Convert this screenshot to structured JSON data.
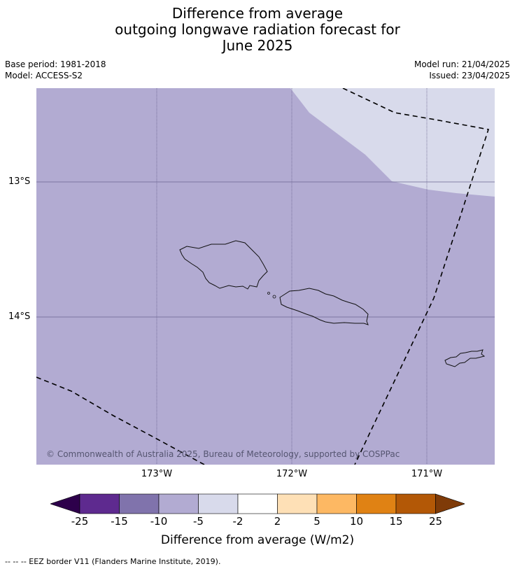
{
  "title": {
    "line1": "Difference from average",
    "line2": "outgoing longwave radiation forecast for",
    "line3": "June 2025"
  },
  "meta": {
    "base_period": "Base period: 1981-2018",
    "model": "Model: ACCESS-S2",
    "model_run": "Model run: 21/04/2025",
    "issued": "Issued: 23/04/2025"
  },
  "map": {
    "copyright": "© Commonwealth of Australia 2025, Bureau of Meteorology, supported by COSPPac",
    "lat_labels": [
      "13°S",
      "14°S"
    ],
    "lon_labels": [
      "173°W",
      "172°W",
      "171°W"
    ],
    "dominant_category": "-10 to -5",
    "secondary_category": "-5 to -2",
    "features": [
      "Samoa islands outline",
      "American Samoa outline",
      "EEZ border dashed lines"
    ]
  },
  "legend": {
    "title": "Difference from average (W/m2)",
    "ticks": [
      "-25",
      "-15",
      "-10",
      "-5",
      "-2",
      "2",
      "5",
      "10",
      "15",
      "25"
    ],
    "colors": [
      "#2d004b",
      "#5e2a8f",
      "#8073ac",
      "#b2abd2",
      "#d8daeb",
      "#ffffff",
      "#fee0b6",
      "#fdb863",
      "#e08214",
      "#b35806",
      "#7f3b08"
    ]
  },
  "footnote": "--  --  -- EEZ border V11 (Flanders Marine Institute, 2019)."
}
